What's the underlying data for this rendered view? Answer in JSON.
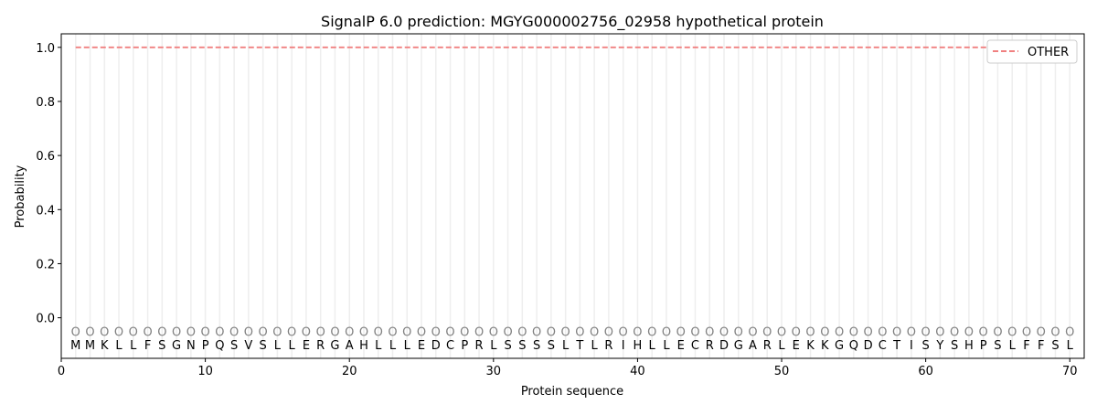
{
  "chart_data": {
    "type": "line",
    "title": "SignalP 6.0 prediction: MGYG000002756_02958 hypothetical protein",
    "xlabel": "Protein sequence",
    "ylabel": "Probability",
    "xlim": [
      0,
      71
    ],
    "ylim": [
      -0.15,
      1.05
    ],
    "xticks": [
      0,
      10,
      20,
      30,
      40,
      50,
      60,
      70
    ],
    "yticks": [
      0.0,
      0.2,
      0.4,
      0.6,
      0.8,
      1.0
    ],
    "ytick_labels": [
      "0.0",
      "0.2",
      "0.4",
      "0.6",
      "0.8",
      "1.0"
    ],
    "legend_placement": "top-right",
    "series": [
      {
        "name": "OTHER",
        "color": "#f08080",
        "style": "dashed",
        "x_start": 1,
        "x_end": 70,
        "value": 1.0
      }
    ],
    "sequence": "MMKLLFSGNPQSVSLLERGAHLLLEDCPRLSSSSLTLRIHLLECRDGARLEKKGQDCTISYSHPSLFFSL",
    "per_residue_label": "O",
    "per_residue_label_y": -0.05,
    "grid": "vertical lines at each residue"
  }
}
